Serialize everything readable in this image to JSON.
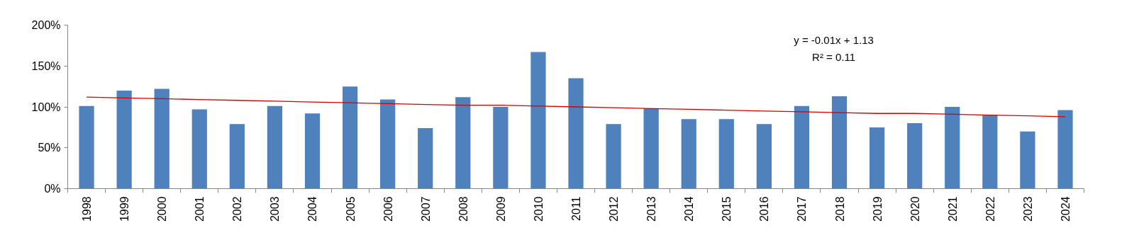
{
  "chart_data": {
    "type": "bar",
    "categories": [
      "1998",
      "1999",
      "2000",
      "2001",
      "2002",
      "2003",
      "2004",
      "2005",
      "2006",
      "2007",
      "2008",
      "2009",
      "2010",
      "2011",
      "2012",
      "2013",
      "2014",
      "2015",
      "2016",
      "2017",
      "2018",
      "2019",
      "2020",
      "2021",
      "2022",
      "2023",
      "2024"
    ],
    "series": [
      {
        "color": "#4f81bd",
        "values": [
          101,
          120,
          122,
          97,
          79,
          101,
          92,
          125,
          109,
          74,
          112,
          100,
          167,
          135,
          79,
          98,
          85,
          85,
          79,
          101,
          113,
          75,
          80,
          100,
          90,
          70,
          96
        ]
      },
      {
        "type": "line",
        "color": "#d40000",
        "values": [
          112,
          111,
          110,
          109,
          108,
          107,
          106,
          105,
          104,
          103,
          102,
          102,
          101,
          100,
          99,
          98,
          97,
          96,
          95,
          94,
          93,
          92,
          92,
          91,
          90,
          89,
          88
        ]
      }
    ],
    "ylim": [
      0,
      200
    ],
    "yticks": [
      {
        "value": 0,
        "label": "0%"
      },
      {
        "value": 50,
        "label": "50%"
      },
      {
        "value": 100,
        "label": "100%"
      },
      {
        "value": 150,
        "label": "150%"
      },
      {
        "value": 200,
        "label": "200%"
      }
    ],
    "annotations": [
      "y = -0.01x + 1.13",
      "R² = 0.11"
    ],
    "grid": false
  }
}
